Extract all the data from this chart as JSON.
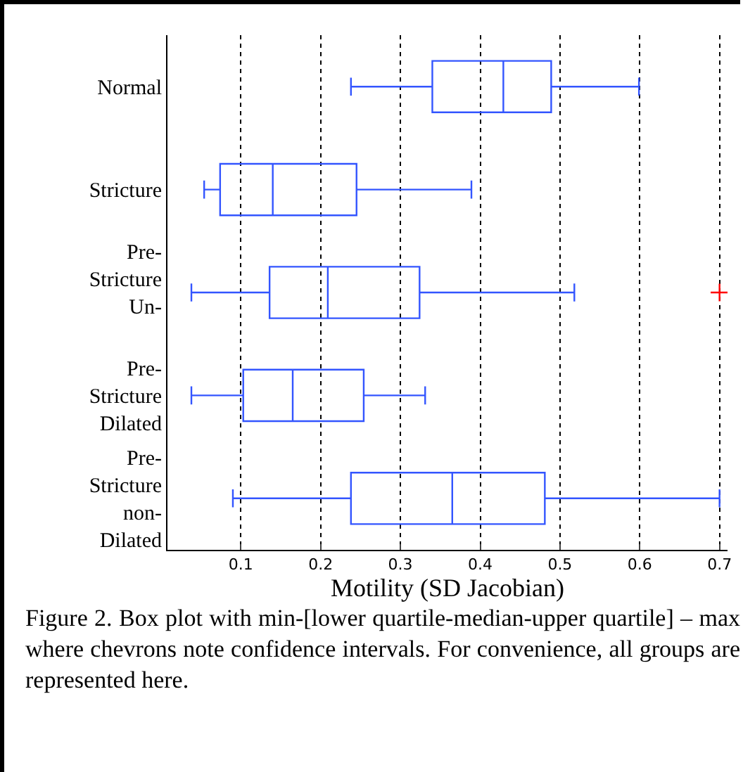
{
  "chart_data": {
    "type": "box",
    "orientation": "horizontal",
    "xlabel": "Motility (SD Jacobian)",
    "categories": [
      "Normal",
      "Stricture",
      "Pre-Stricture Un-",
      "Pre-Stricture Dilated",
      "Pre-Stricture non-Dilated"
    ],
    "color": "#3355ff",
    "boxes": [
      {
        "low": 0.238,
        "q1": 0.34,
        "median": 0.429,
        "q3": 0.489,
        "high": 0.599
      },
      {
        "low": 0.054,
        "q1": 0.074,
        "median": 0.14,
        "q3": 0.245,
        "high": 0.389
      },
      {
        "low": 0.038,
        "q1": 0.136,
        "median": 0.209,
        "q3": 0.324,
        "high": 0.518,
        "outliers": [
          0.7
        ]
      },
      {
        "low": 0.038,
        "q1": 0.103,
        "median": 0.165,
        "q3": 0.254,
        "high": 0.331
      },
      {
        "low": 0.09,
        "q1": 0.238,
        "median": 0.365,
        "q3": 0.481,
        "high": 0.7
      }
    ],
    "xlim": [
      0.008,
      0.71
    ],
    "xticks": [
      0.1,
      0.2,
      0.3,
      0.4,
      0.5,
      0.6,
      0.7
    ],
    "grid": "x",
    "annotations": [
      "Figure 2. Box plot with min-[lower quartile-median-upper quartile] – max where chevrons note confidence intervals. For convenience, all groups are represented here."
    ]
  }
}
